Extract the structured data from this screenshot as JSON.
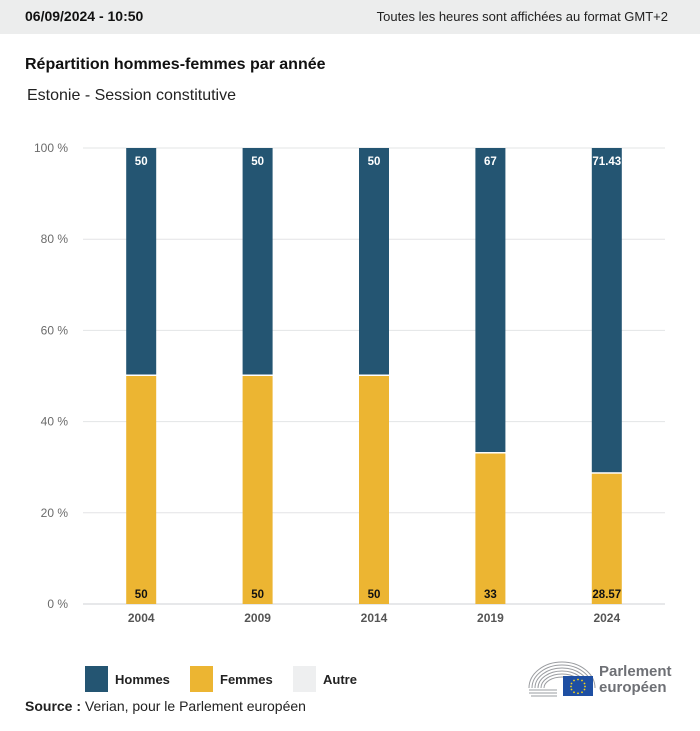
{
  "header": {
    "datetime": "06/09/2024 - 10:50",
    "timezone_note": "Toutes les heures sont affichées au format GMT+2"
  },
  "chart_data": {
    "type": "bar",
    "stacked": true,
    "title": "Répartition hommes-femmes par année",
    "subtitle": "Estonie - Session constitutive",
    "categories": [
      "2004",
      "2009",
      "2014",
      "2019",
      "2024"
    ],
    "series": [
      {
        "name": "Femmes",
        "color": "#ecb532",
        "values": [
          50,
          50,
          50,
          33,
          28.57
        ],
        "labels": [
          "50",
          "50",
          "50",
          "33",
          "28.57"
        ]
      },
      {
        "name": "Hommes",
        "color": "#245572",
        "values": [
          50,
          50,
          50,
          67,
          71.43
        ],
        "labels": [
          "50",
          "50",
          "50",
          "67",
          "71.43"
        ]
      },
      {
        "name": "Autre",
        "color": "#eeeff0",
        "values": [
          0,
          0,
          0,
          0,
          0
        ],
        "labels": []
      }
    ],
    "yticks": [
      "0 %",
      "20 %",
      "40 %",
      "60 %",
      "80 %",
      "100 %"
    ],
    "ytick_values": [
      0,
      20,
      40,
      60,
      80,
      100
    ],
    "ylim": [
      0,
      100
    ],
    "xlabel": "",
    "ylabel": "",
    "grid": true,
    "legend_position": "bottom-left"
  },
  "legend": [
    {
      "label": "Hommes",
      "color": "#245572"
    },
    {
      "label": "Femmes",
      "color": "#ecb532"
    },
    {
      "label": "Autre",
      "color": "#eeeff0"
    }
  ],
  "footer": {
    "source_label": "Source :",
    "source_text": " Verian, pour le Parlement européen",
    "logo_line1": "Parlement",
    "logo_line2": "européen"
  },
  "colors": {
    "hommes": "#245572",
    "femmes": "#ecb532",
    "autre": "#eeeff0",
    "eu_blue": "#1e4fa3",
    "eu_star": "#f7d417"
  }
}
